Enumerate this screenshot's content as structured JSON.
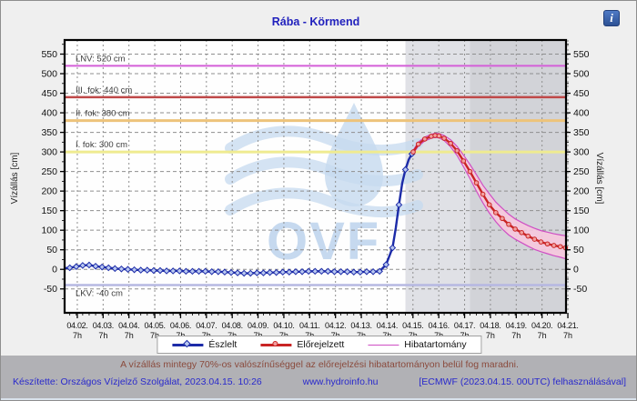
{
  "info_icon": {
    "glyph": "i"
  },
  "disclaimer": "A vízállás mintegy 70%-os valószínűséggel az előrejelzési hibatartományon belül fog maradni.",
  "footer": {
    "credit": "Készítette: Országos Vízjelző Szolgálat, 2023.04.15. 10:26",
    "site": "www.hydroinfo.hu",
    "model_note": "[ECMWF (2023.04.15. 00UTC) felhasználásával]"
  },
  "chart_data": {
    "type": "line",
    "title": "Rába - Körmend",
    "ylabel_left": "Vízállás [cm]",
    "ylabel_right": "Vízállás [cm]",
    "ylim": [
      -111,
      586
    ],
    "xlim_days": [
      -0.2,
      19.22
    ],
    "grid": true,
    "watermark_text": "OVF",
    "watermark_color": "#c6d9ef",
    "y_axis": {
      "ticks": [
        -50,
        0,
        50,
        100,
        150,
        200,
        250,
        300,
        350,
        400,
        450,
        500,
        550
      ],
      "minor_step": 25
    },
    "x_axis": {
      "dates": [
        "04.02.",
        "04.03.",
        "04.04.",
        "04.05.",
        "04.06.",
        "04.07.",
        "04.08.",
        "04.09.",
        "04.10.",
        "04.11.",
        "04.12.",
        "04.13.",
        "04.14.",
        "04.15.",
        "04.16.",
        "04.17.",
        "04.18.",
        "04.19.",
        "04.20.",
        "04.21."
      ],
      "hour_label": "7h",
      "tick_offset_days": 0.2917,
      "minor_step_days": 0.25
    },
    "zones": [
      {
        "from_day": 13.0,
        "to_day": 15.5,
        "color": "#e0e1e6"
      },
      {
        "from_day": 15.5,
        "to_day": 19.22,
        "color": "#d2d3d8"
      }
    ],
    "reference_lines": [
      {
        "label": "LNV: 520 cm",
        "value": 520,
        "color": "#d45fd8",
        "width": 2
      },
      {
        "label": "III. fok: 440 cm",
        "value": 440,
        "color": "#bf4848",
        "width": 2.5
      },
      {
        "label": "II. fok: 380 cm",
        "value": 380,
        "color": "#edc37a",
        "width": 3
      },
      {
        "label": "I. fok: 300 cm",
        "value": 300,
        "color": "#efeb90",
        "width": 3
      },
      {
        "label": "LKV: -40 cm",
        "value": -40,
        "color": "#b6b8e2",
        "width": 2.5,
        "label_below": true
      }
    ],
    "series": [
      {
        "name": "Észlelt",
        "color": "#1c2ba8",
        "marker": "diamond",
        "marker_fill": "#b9c8f0",
        "points": [
          [
            -0.2,
            3
          ],
          [
            0,
            4
          ],
          [
            0.25,
            7
          ],
          [
            0.5,
            10
          ],
          [
            0.75,
            11
          ],
          [
            1,
            8
          ],
          [
            1.25,
            6
          ],
          [
            1.5,
            4
          ],
          [
            1.75,
            2
          ],
          [
            2,
            1
          ],
          [
            2.25,
            0
          ],
          [
            2.5,
            -1
          ],
          [
            2.75,
            -2
          ],
          [
            3,
            -2
          ],
          [
            3.25,
            -3
          ],
          [
            3.5,
            -3
          ],
          [
            3.75,
            -4
          ],
          [
            4,
            -4
          ],
          [
            4.25,
            -4
          ],
          [
            4.5,
            -5
          ],
          [
            4.75,
            -5
          ],
          [
            5,
            -5
          ],
          [
            5.25,
            -5
          ],
          [
            5.5,
            -6
          ],
          [
            5.75,
            -6
          ],
          [
            6,
            -7
          ],
          [
            6.25,
            -8
          ],
          [
            6.5,
            -9
          ],
          [
            6.75,
            -10
          ],
          [
            7,
            -10
          ],
          [
            7.25,
            -9
          ],
          [
            7.5,
            -9
          ],
          [
            7.75,
            -8
          ],
          [
            8,
            -8
          ],
          [
            8.25,
            -7
          ],
          [
            8.5,
            -7
          ],
          [
            8.75,
            -6
          ],
          [
            9,
            -6
          ],
          [
            9.25,
            -5
          ],
          [
            9.5,
            -5
          ],
          [
            9.75,
            -5
          ],
          [
            10,
            -5
          ],
          [
            10.25,
            -6
          ],
          [
            10.5,
            -6
          ],
          [
            10.75,
            -6
          ],
          [
            11,
            -7
          ],
          [
            11.25,
            -7
          ],
          [
            11.5,
            -6
          ],
          [
            11.75,
            -6
          ],
          [
            12,
            -5
          ],
          [
            12.25,
            12
          ],
          [
            12.5,
            55
          ],
          [
            12.625,
            105
          ],
          [
            12.75,
            165
          ],
          [
            12.875,
            220
          ],
          [
            13,
            255
          ],
          [
            13.125,
            280
          ],
          [
            13.25,
            295
          ],
          [
            13.3,
            300
          ]
        ]
      },
      {
        "name": "Előrejelzett",
        "color": "#c92424",
        "marker": "circle",
        "marker_fill": "#f2a0a0",
        "points": [
          [
            13.3,
            300
          ],
          [
            13.5,
            320
          ],
          [
            13.75,
            333
          ],
          [
            14,
            340
          ],
          [
            14.15,
            342
          ],
          [
            14.3,
            341
          ],
          [
            14.5,
            335
          ],
          [
            14.75,
            322
          ],
          [
            15,
            303
          ],
          [
            15.25,
            277
          ],
          [
            15.5,
            250
          ],
          [
            15.75,
            221
          ],
          [
            16,
            192
          ],
          [
            16.25,
            165
          ],
          [
            16.5,
            145
          ],
          [
            16.75,
            130
          ],
          [
            17,
            115
          ],
          [
            17.25,
            103
          ],
          [
            17.5,
            94
          ],
          [
            17.75,
            85
          ],
          [
            18,
            77
          ],
          [
            18.25,
            70
          ],
          [
            18.5,
            65
          ],
          [
            18.75,
            61
          ],
          [
            19,
            58
          ],
          [
            19.2,
            55
          ]
        ]
      }
    ],
    "band": {
      "name": "Hibatartomány",
      "line_color": "#cf4fc4",
      "fill": "#f6c8de",
      "upper": [
        [
          13.3,
          304
        ],
        [
          13.5,
          325
        ],
        [
          13.75,
          338
        ],
        [
          14,
          345
        ],
        [
          14.15,
          348
        ],
        [
          14.3,
          347
        ],
        [
          14.5,
          342
        ],
        [
          14.75,
          331
        ],
        [
          15,
          314
        ],
        [
          15.25,
          292
        ],
        [
          15.5,
          268
        ],
        [
          15.75,
          242
        ],
        [
          16,
          215
        ],
        [
          16.25,
          193
        ],
        [
          16.5,
          172
        ],
        [
          16.75,
          156
        ],
        [
          17,
          141
        ],
        [
          17.25,
          129
        ],
        [
          17.5,
          120
        ],
        [
          17.75,
          112
        ],
        [
          18,
          105
        ],
        [
          18.25,
          99
        ],
        [
          18.5,
          95
        ],
        [
          18.75,
          91
        ],
        [
          19,
          88
        ],
        [
          19.2,
          86
        ]
      ],
      "lower": [
        [
          13.3,
          296
        ],
        [
          13.5,
          315
        ],
        [
          13.75,
          328
        ],
        [
          14,
          335
        ],
        [
          14.15,
          337
        ],
        [
          14.3,
          336
        ],
        [
          14.5,
          329
        ],
        [
          14.75,
          313
        ],
        [
          15,
          291
        ],
        [
          15.25,
          262
        ],
        [
          15.5,
          232
        ],
        [
          15.75,
          200
        ],
        [
          16,
          170
        ],
        [
          16.25,
          144
        ],
        [
          16.5,
          122
        ],
        [
          16.75,
          103
        ],
        [
          17,
          88
        ],
        [
          17.25,
          77
        ],
        [
          17.5,
          68
        ],
        [
          17.75,
          59
        ],
        [
          18,
          51
        ],
        [
          18.25,
          45
        ],
        [
          18.5,
          40
        ],
        [
          18.75,
          35
        ],
        [
          19,
          31
        ],
        [
          19.2,
          27
        ]
      ]
    }
  }
}
